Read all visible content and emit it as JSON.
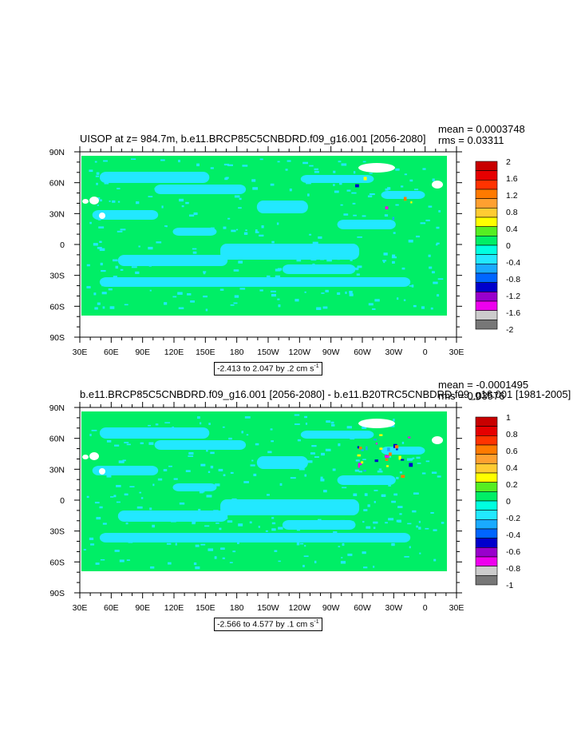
{
  "chart_data": [
    {
      "type": "heatmap",
      "title": "UISOP at z= 984.7m, b.e11.BRCP85C5CNBDRD.f09_g16.001 [2056-2080]",
      "stats": {
        "mean": "mean = 0.0003748",
        "rms": "rms = 0.03311"
      },
      "x_ticks": [
        "30E",
        "60E",
        "90E",
        "120E",
        "150E",
        "180",
        "150W",
        "120W",
        "90W",
        "60W",
        "30W",
        "0",
        "30E"
      ],
      "y_ticks": [
        "90N",
        "60N",
        "30N",
        "0",
        "30S",
        "60S",
        "90S"
      ],
      "range_text": "-2.413 to 2.047 by .2 cm s",
      "range_unit_exp": "-1",
      "colorbar": {
        "labels": [
          "2",
          "1.6",
          "1.2",
          "0.8",
          "0.4",
          "0",
          "-0.4",
          "-0.8",
          "-1.2",
          "-1.6",
          "-2"
        ],
        "colors": [
          "#c80000",
          "#e60000",
          "#ff3300",
          "#ff7a00",
          "#ffa030",
          "#ffcc33",
          "#ffff00",
          "#55ee22",
          "#00ee66",
          "#00ffe0",
          "#22e8ff",
          "#1aaaff",
          "#0066ff",
          "#0000cc",
          "#9900cc",
          "#ee00ee",
          "#cccccc",
          "#777777"
        ]
      },
      "background_value": 0,
      "ocean_color": "#00ee66",
      "anomaly_color": "#22e8ff"
    },
    {
      "type": "heatmap",
      "title": "b.e11.BRCP85C5CNBDRD.f09_g16.001 [2056-2080] - b.e11.B20TRC5CNBDRD.f09_g16.001 [1981-2005]",
      "stats": {
        "mean": "mean = -0.0001495",
        "rms": "rms = 0.03576"
      },
      "x_ticks": [
        "30E",
        "60E",
        "90E",
        "120E",
        "150E",
        "180",
        "150W",
        "120W",
        "90W",
        "60W",
        "30W",
        "0",
        "30E"
      ],
      "y_ticks": [
        "90N",
        "60N",
        "30N",
        "0",
        "30S",
        "60S",
        "90S"
      ],
      "range_text": "-2.566 to 4.577 by .1 cm s",
      "range_unit_exp": "-1",
      "colorbar": {
        "labels": [
          "1",
          "0.8",
          "0.6",
          "0.4",
          "0.2",
          "0",
          "-0.2",
          "-0.4",
          "-0.6",
          "-0.8",
          "-1"
        ],
        "colors": [
          "#c80000",
          "#e60000",
          "#ff3300",
          "#ff7a00",
          "#ffa030",
          "#ffcc33",
          "#ffff00",
          "#55ee22",
          "#00ee66",
          "#00ffe0",
          "#22e8ff",
          "#1aaaff",
          "#0066ff",
          "#0000cc",
          "#9900cc",
          "#ee00ee",
          "#cccccc",
          "#777777"
        ]
      },
      "background_value": 0,
      "ocean_color": "#00ee66",
      "anomaly_color": "#22e8ff"
    }
  ]
}
